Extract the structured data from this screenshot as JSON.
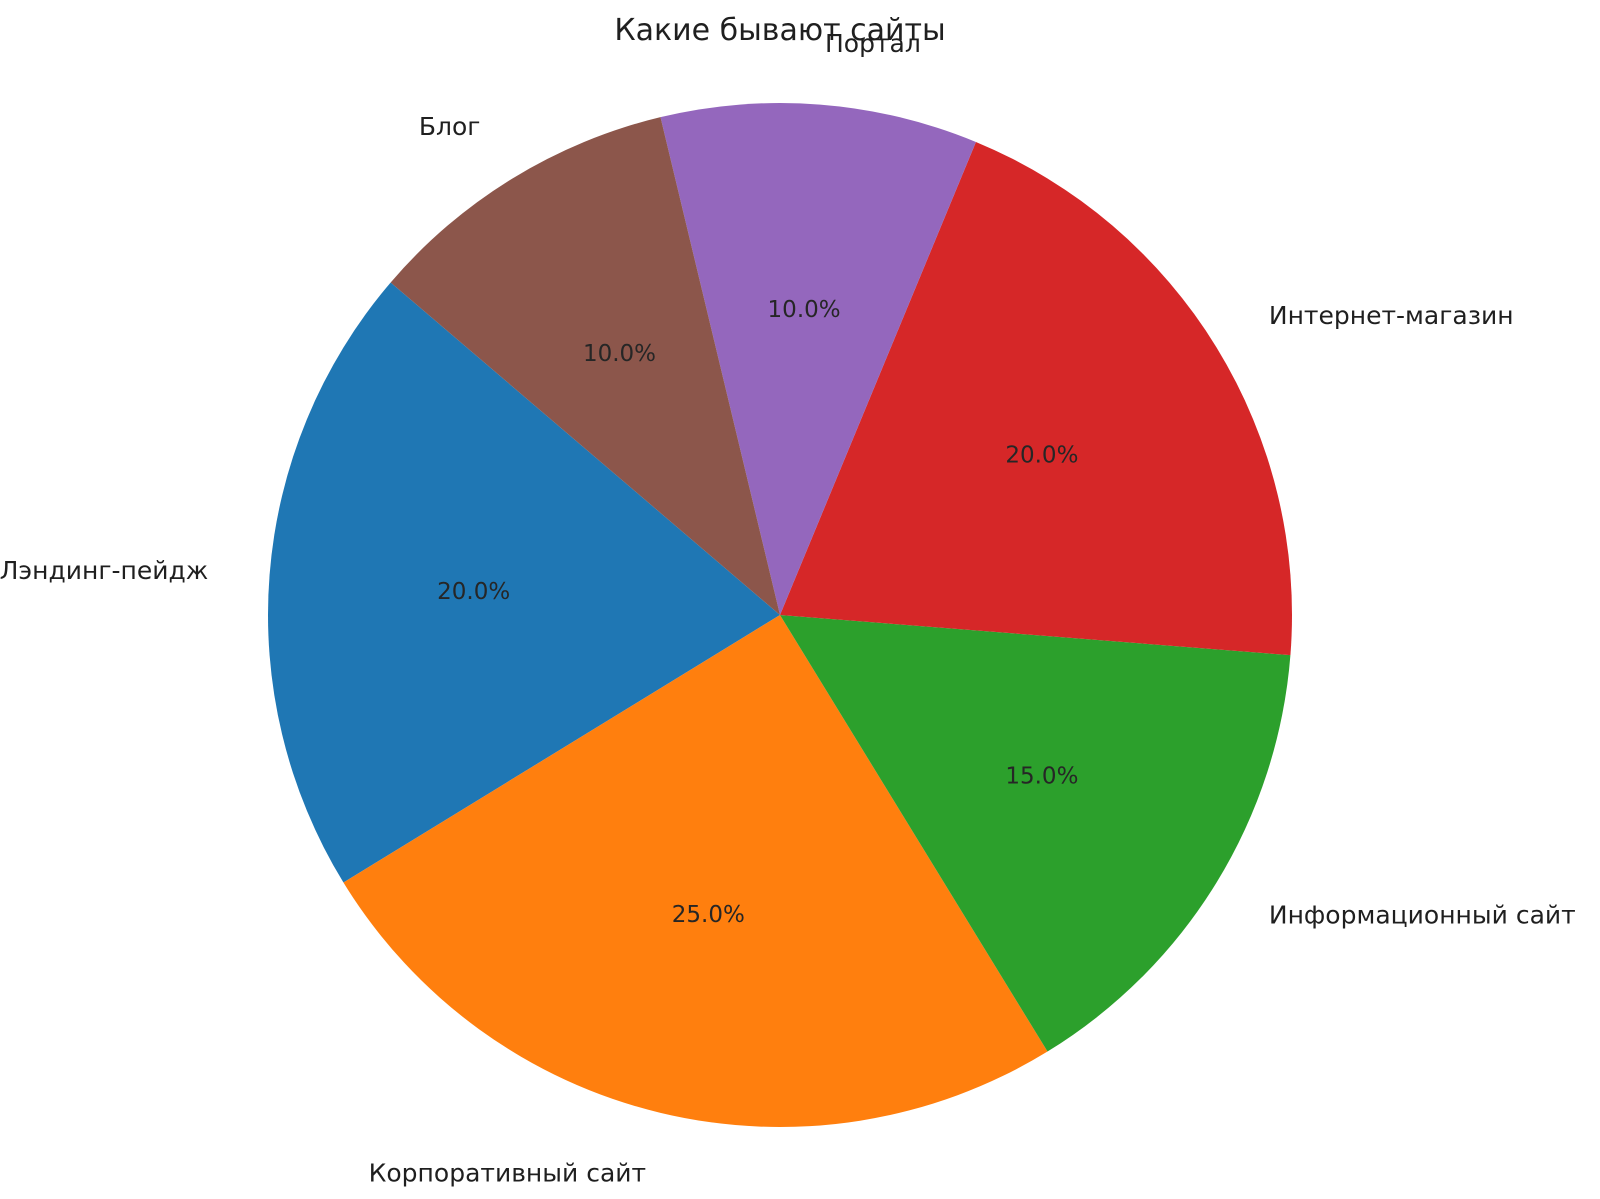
{
  "chart_data": {
    "type": "pie",
    "title": "Какие бывают сайты",
    "legend": "none",
    "background_color": "#ffffff",
    "text_color": "#1f1f1f",
    "start_angle_deg": 139.5,
    "direction": "counterclockwise",
    "label_distance": 1.12,
    "pct_distance": 0.6,
    "slices": [
      {
        "label": "Лэндинг-пейдж",
        "value": 20,
        "pct_label": "20.0%",
        "color": "#1f77b4"
      },
      {
        "label": "Корпоративный сайт",
        "value": 25,
        "pct_label": "25.0%",
        "color": "#ff7f0e"
      },
      {
        "label": "Информационный сайт",
        "value": 15,
        "pct_label": "15.0%",
        "color": "#2ca02c"
      },
      {
        "label": "Интернет-магазин",
        "value": 20,
        "pct_label": "20.0%",
        "color": "#d62728"
      },
      {
        "label": "Портал",
        "value": 10,
        "pct_label": "10.0%",
        "color": "#9467bd"
      },
      {
        "label": "Блог",
        "value": 10,
        "pct_label": "10.0%",
        "color": "#8c564b"
      }
    ]
  }
}
